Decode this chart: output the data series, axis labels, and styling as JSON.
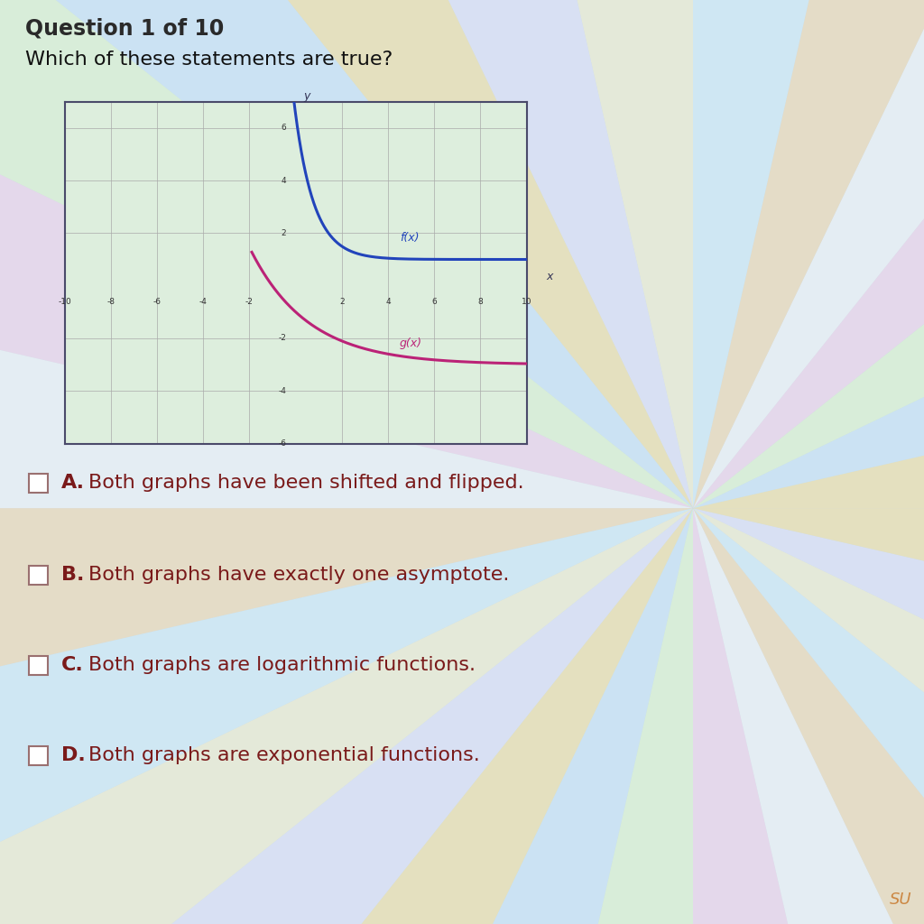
{
  "title": "Question 1 of 10",
  "question": "Which of these statements are true?",
  "background_base": "#c5d8e5",
  "graph": {
    "xlim": [
      -10,
      10
    ],
    "ylim": [
      -6,
      7
    ],
    "xticks": [
      -10,
      -8,
      -6,
      -4,
      -2,
      2,
      4,
      6,
      8,
      10
    ],
    "yticks": [
      -6,
      -4,
      -2,
      2,
      4,
      6
    ],
    "ytick_labels": [
      "-6",
      "-4",
      "-2",
      "2",
      "4",
      "6"
    ],
    "xtick_labels": [
      "-10",
      "-8",
      "-6",
      "-4",
      "-2",
      "2",
      "4",
      "6",
      "8",
      "10"
    ],
    "fx_color": "#2244bb",
    "gx_color": "#bb2277",
    "fx_label": "f(x)",
    "gx_label": "g(x)",
    "grid_color": "#aaaaaa",
    "border_color": "#4a4a6a",
    "axis_color": "#333355",
    "facecolor": "#ddeedd"
  },
  "options": [
    {
      "letter": "A",
      "text": "Both graphs have been shifted and flipped."
    },
    {
      "letter": "B",
      "text": "Both graphs have exactly one asymptote."
    },
    {
      "letter": "C",
      "text": "Both graphs are logarithmic functions."
    },
    {
      "letter": "D",
      "text": "Both graphs are exponential functions."
    }
  ],
  "option_color": "#7a1a1a",
  "title_color": "#2a2a2a",
  "question_color": "#111111",
  "checkbox_edge": "#9a7070",
  "su_color": "#cc8844",
  "ray_colors": [
    "#ffe8a0",
    "#d0ecff",
    "#e8ffd0",
    "#ffd8f0",
    "#ffffff",
    "#ffe0b0",
    "#d8f4ff",
    "#fff8d0",
    "#e8e8ff"
  ],
  "ray_alpha": 0.55,
  "n_rays": 28
}
